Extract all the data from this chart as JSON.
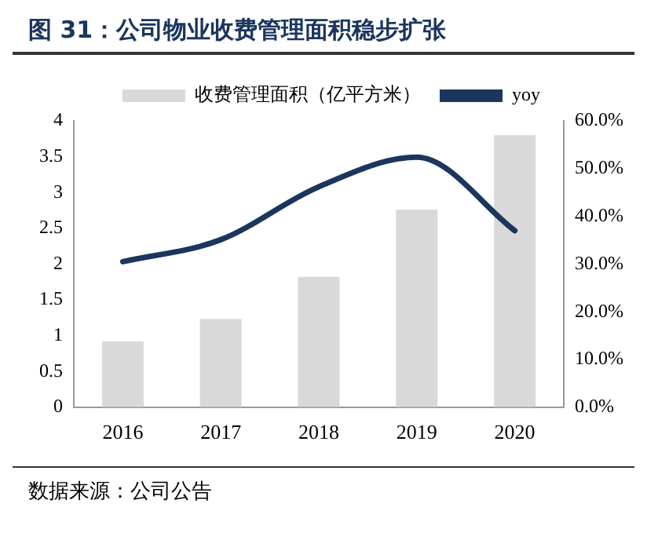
{
  "chart_data": {
    "type": "bar",
    "title": "图 31：公司物业收费管理面积稳步扩张",
    "categories": [
      "2016",
      "2017",
      "2018",
      "2019",
      "2020"
    ],
    "series": [
      {
        "name": "收费管理面积（亿平方米）",
        "color": "#d9d9d9",
        "values": [
          0.92,
          1.23,
          1.82,
          2.76,
          3.8
        ]
      },
      {
        "name": "yoy",
        "type": "line",
        "axis": "y2",
        "color": "#1b365d",
        "values": [
          30.5,
          35.1,
          46.2,
          52.4,
          37.0
        ]
      }
    ],
    "ylim": [
      0,
      4
    ],
    "yticks": [
      0,
      0.5,
      1,
      1.5,
      2,
      2.5,
      3,
      3.5,
      4
    ],
    "y2lim": [
      0,
      60
    ],
    "y2ticks": [
      {
        "value": 0,
        "label": "0.0%"
      },
      {
        "value": 10,
        "label": "10.0%"
      },
      {
        "value": 20,
        "label": "20.0%"
      },
      {
        "value": 30,
        "label": "30.0%"
      },
      {
        "value": 40,
        "label": "40.0%"
      },
      {
        "value": 50,
        "label": "50.0%"
      },
      {
        "value": 60,
        "label": "60.0%"
      }
    ],
    "legend": "top",
    "grid": false,
    "marker": "none",
    "line_style": "solid",
    "annotations": [
      "数据来源：公司公告"
    ]
  }
}
